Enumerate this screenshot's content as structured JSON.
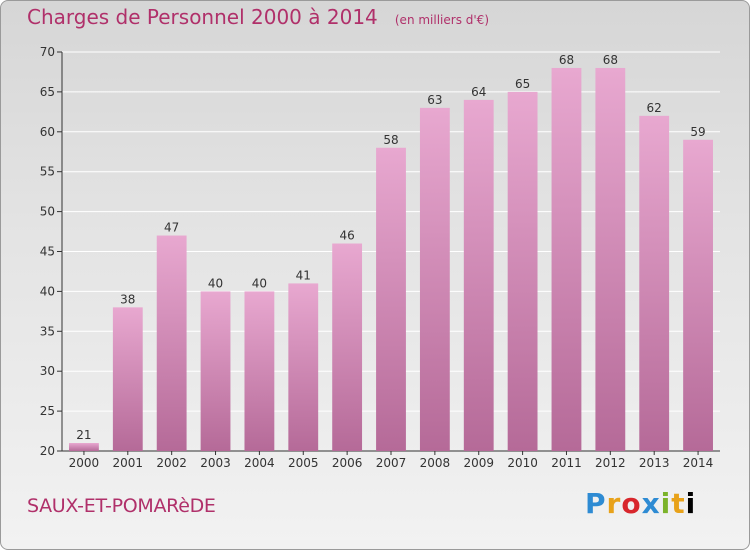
{
  "header": {
    "title": "Charges de Personnel 2000 à 2014",
    "subtitle": "(en milliers d'€)"
  },
  "footer": {
    "location": "SAUX-ET-POMARèDE",
    "brand_letters": [
      "P",
      "r",
      "o",
      "x",
      "i",
      "t",
      "i"
    ]
  },
  "chart_data": {
    "type": "bar",
    "title": "Charges de Personnel 2000 à 2014",
    "subtitle": "(en milliers d'€)",
    "categories": [
      "2000",
      "2001",
      "2002",
      "2003",
      "2004",
      "2005",
      "2006",
      "2007",
      "2008",
      "2009",
      "2010",
      "2011",
      "2012",
      "2013",
      "2014"
    ],
    "values": [
      21,
      38,
      47,
      40,
      40,
      41,
      46,
      58,
      63,
      64,
      65,
      68,
      68,
      62,
      59
    ],
    "ylim": [
      20,
      70
    ],
    "yticks": [
      20,
      25,
      30,
      35,
      40,
      45,
      50,
      55,
      60,
      65,
      70
    ],
    "grid": true,
    "colors": {
      "bar_top": "#e8a8d0",
      "bar_bottom": "#b56a98",
      "grid": "#ffffff"
    }
  }
}
